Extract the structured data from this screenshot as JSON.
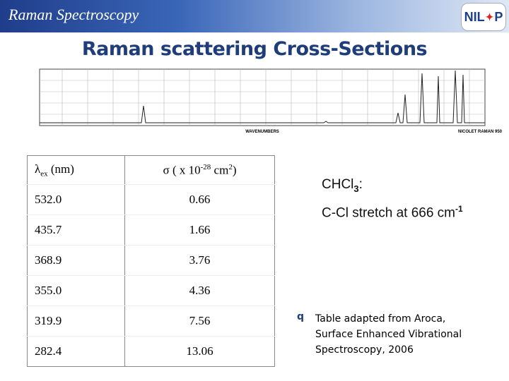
{
  "header": {
    "title": "Raman Spectroscopy",
    "logo": {
      "left": "NIL",
      "right": "P"
    }
  },
  "slide_title": "Raman scattering Cross-Sections",
  "spectrum": {
    "x_label": "WAVENUMBERS",
    "instrument": "NICOLET RAMAN 950"
  },
  "table": {
    "header": [
      {
        "symbol": "λ",
        "sub": "ex",
        "rest": " (nm)"
      },
      {
        "symbol": "σ",
        "pre": " ( x 10",
        "sup": "-28",
        "mid": " cm",
        "sup2": "2",
        "post": ")"
      }
    ],
    "rows": [
      [
        "532.0",
        "0.66"
      ],
      [
        "435.7",
        "1.66"
      ],
      [
        "368.9",
        "3.76"
      ],
      [
        "355.0",
        "4.36"
      ],
      [
        "319.9",
        "7.56"
      ],
      [
        "282.4",
        "13.06"
      ]
    ]
  },
  "note": {
    "formula": "CHCl",
    "formula_sub": "3",
    "formula_colon": ":",
    "line2": "C-Cl stretch at 666 cm",
    "line2_sup": "-1"
  },
  "citation": {
    "bullet": "q",
    "lines": [
      "Table adapted from Aroca,",
      "Surface Enhanced Vibrational",
      "Spectroscopy, 2006"
    ]
  }
}
